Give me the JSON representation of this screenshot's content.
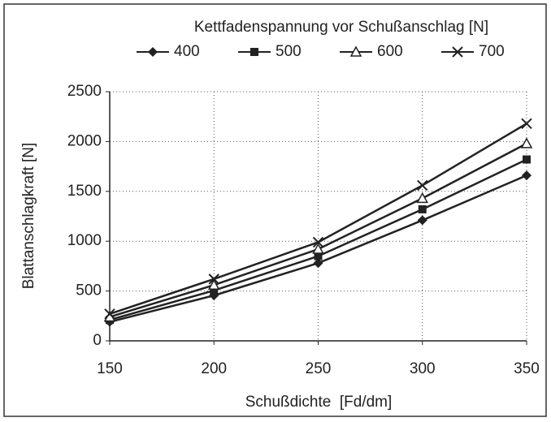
{
  "chart_data": {
    "type": "line",
    "legend_title": "Kettfadenspannung vor Schußanschlag [N]",
    "x_label": "Schußdichte  [Fd/dm]",
    "y_label": "Blattanschlagkraft [N]",
    "x": [
      150,
      200,
      250,
      300,
      350
    ],
    "xlim": [
      150,
      350
    ],
    "xticks": [
      150,
      200,
      250,
      300,
      350
    ],
    "ylim": [
      0,
      2500
    ],
    "yticks": [
      0,
      500,
      1000,
      1500,
      2000,
      2500
    ],
    "grid": true,
    "legend": "top",
    "series": [
      {
        "name": "400",
        "color": "#222222",
        "marker": "diamond",
        "values": [
          190,
          455,
          780,
          1210,
          1660
        ]
      },
      {
        "name": "500",
        "color": "#222222",
        "marker": "square",
        "values": [
          210,
          505,
          850,
          1320,
          1820
        ]
      },
      {
        "name": "600",
        "color": "#222222",
        "marker": "triangle",
        "values": [
          240,
          560,
          920,
          1430,
          1980
        ]
      },
      {
        "name": "700",
        "color": "#222222",
        "marker": "cross",
        "values": [
          270,
          620,
          990,
          1560,
          2180
        ]
      }
    ]
  }
}
